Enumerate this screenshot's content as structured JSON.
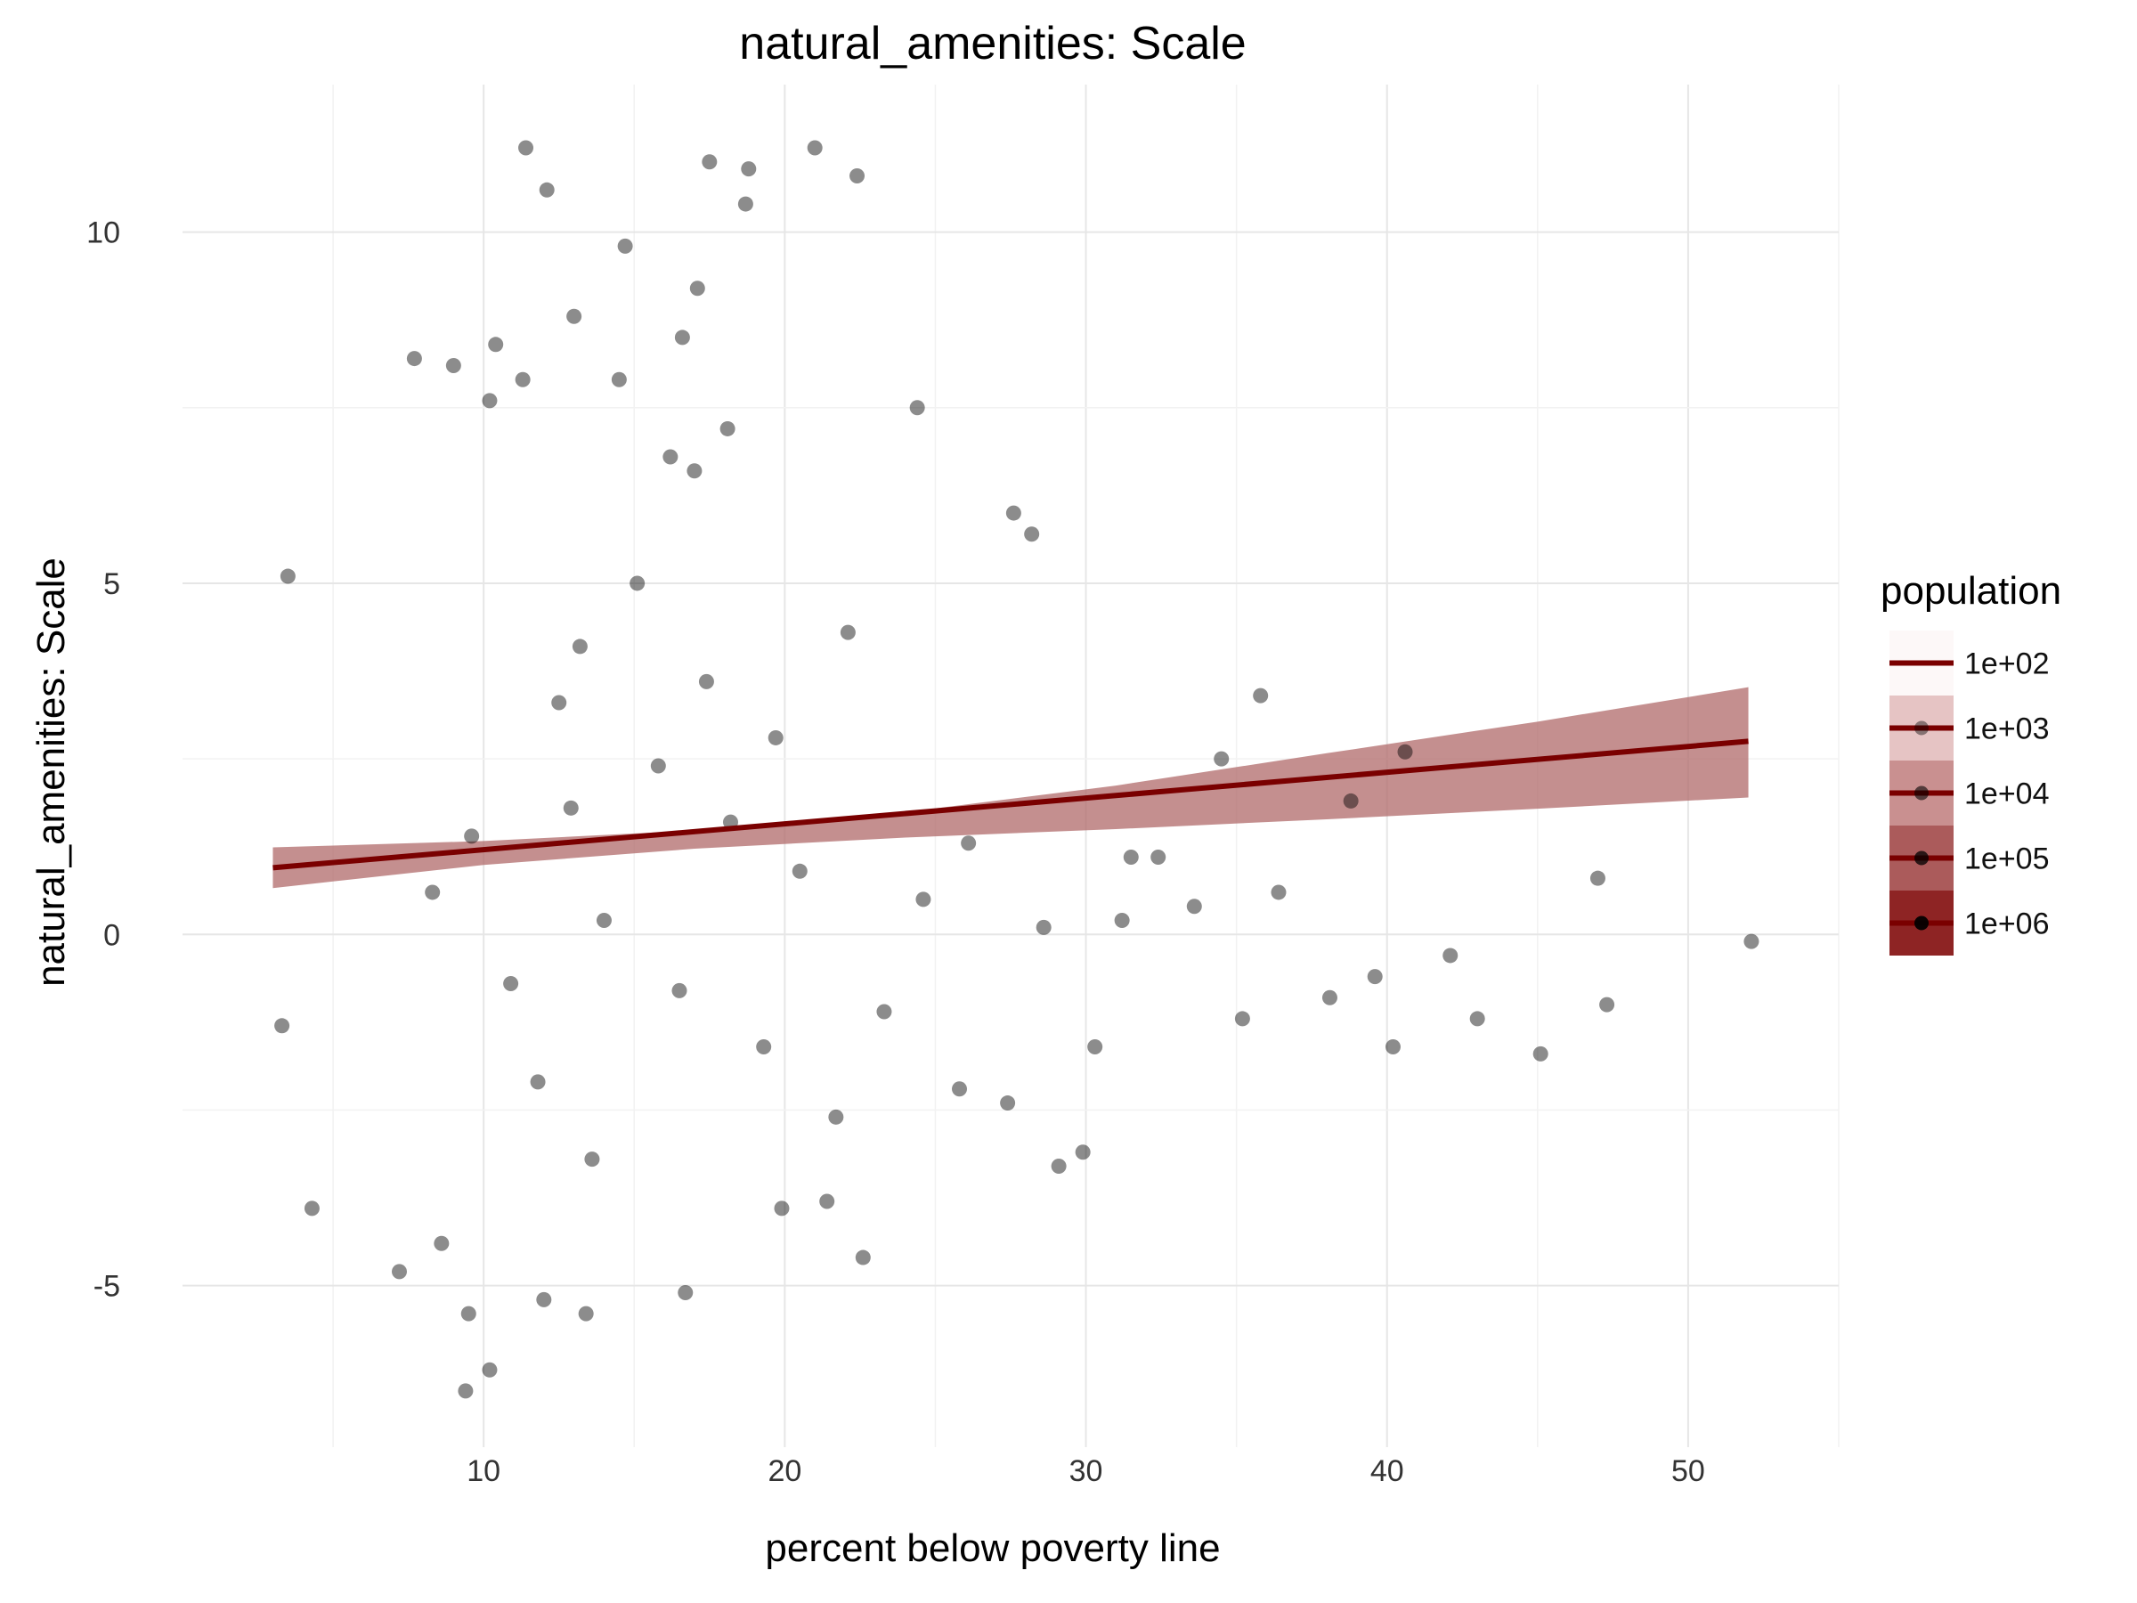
{
  "chart_data": {
    "type": "scatter",
    "title": "natural_amenities: Scale",
    "xlabel": "percent below poverty line",
    "ylabel": "natural_amenities: Scale",
    "xlim": [
      0,
      55
    ],
    "ylim": [
      -7.3,
      12.1
    ],
    "x_ticks": [
      10,
      20,
      30,
      40,
      50
    ],
    "y_ticks": [
      -5,
      0,
      5,
      10
    ],
    "x_tick_labels": [
      "10",
      "20",
      "30",
      "40",
      "50"
    ],
    "y_tick_labels": [
      "-5",
      "0",
      "5",
      "10"
    ],
    "grid": true,
    "point_color": "#000000",
    "fit_color": "#7a0000",
    "ribbon_color": "#b06a6a",
    "fit_line": {
      "x": [
        3,
        52
      ],
      "y": [
        0.95,
        2.75
      ]
    },
    "confidence_band": {
      "x": [
        3,
        10,
        17,
        24,
        31,
        38,
        45,
        52
      ],
      "lower": [
        0.66,
        0.99,
        1.22,
        1.38,
        1.5,
        1.64,
        1.79,
        1.95
      ],
      "upper": [
        1.24,
        1.33,
        1.48,
        1.74,
        2.12,
        2.58,
        3.03,
        3.52
      ]
    },
    "points": [
      [
        11.4,
        11.2
      ],
      [
        12.1,
        10.6
      ],
      [
        18.7,
        10.4
      ],
      [
        21.0,
        11.2
      ],
      [
        22.4,
        10.8
      ],
      [
        17.5,
        11.0
      ],
      [
        18.8,
        10.9
      ],
      [
        14.7,
        9.8
      ],
      [
        13.0,
        8.8
      ],
      [
        17.1,
        9.2
      ],
      [
        16.6,
        8.5
      ],
      [
        10.4,
        8.4
      ],
      [
        7.7,
        8.2
      ],
      [
        9.0,
        8.1
      ],
      [
        11.3,
        7.9
      ],
      [
        14.5,
        7.9
      ],
      [
        10.2,
        7.6
      ],
      [
        24.4,
        7.5
      ],
      [
        18.1,
        7.2
      ],
      [
        16.2,
        6.8
      ],
      [
        17.0,
        6.6
      ],
      [
        27.6,
        6.0
      ],
      [
        28.2,
        5.7
      ],
      [
        3.5,
        5.1
      ],
      [
        35.8,
        3.4
      ],
      [
        34.5,
        2.5
      ],
      [
        40.6,
        2.6
      ],
      [
        38.8,
        1.9
      ],
      [
        31.5,
        1.1
      ],
      [
        32.4,
        1.1
      ],
      [
        47.0,
        0.8
      ],
      [
        52.1,
        -0.1
      ],
      [
        47.3,
        -1.0
      ],
      [
        45.1,
        -1.7
      ],
      [
        43.0,
        -1.2
      ],
      [
        40.2,
        -1.6
      ],
      [
        3.3,
        -1.3
      ],
      [
        4.3,
        -3.9
      ],
      [
        9.4,
        -6.5
      ],
      [
        10.2,
        -6.2
      ],
      [
        22.6,
        -4.6
      ],
      [
        16.7,
        -5.1
      ],
      [
        13.4,
        -5.4
      ],
      [
        9.5,
        -5.4
      ],
      [
        12.0,
        -5.2
      ],
      [
        29.1,
        -3.3
      ],
      [
        29.9,
        -3.1
      ],
      [
        19.9,
        -3.9
      ],
      [
        21.4,
        -3.8
      ],
      [
        8.6,
        -4.4
      ],
      [
        7.2,
        -4.8
      ],
      [
        33.6,
        0.4
      ],
      [
        36.4,
        0.6
      ],
      [
        31.2,
        0.2
      ],
      [
        38.1,
        -0.9
      ],
      [
        39.6,
        -0.6
      ],
      [
        42.1,
        -0.3
      ],
      [
        30.3,
        -1.6
      ],
      [
        25.8,
        -2.2
      ],
      [
        27.4,
        -2.4
      ],
      [
        35.2,
        -1.2
      ],
      [
        12.5,
        3.3
      ],
      [
        15.8,
        2.4
      ],
      [
        18.2,
        1.6
      ],
      [
        20.5,
        0.9
      ],
      [
        14.0,
        0.2
      ],
      [
        16.5,
        -0.8
      ],
      [
        19.3,
        -1.6
      ],
      [
        11.8,
        -2.1
      ],
      [
        13.6,
        -3.2
      ],
      [
        21.7,
        -2.6
      ],
      [
        23.3,
        -1.1
      ],
      [
        24.6,
        0.5
      ],
      [
        9.6,
        1.4
      ],
      [
        8.3,
        0.6
      ],
      [
        10.9,
        -0.7
      ],
      [
        12.9,
        1.8
      ],
      [
        17.4,
        3.6
      ],
      [
        22.1,
        4.3
      ],
      [
        26.1,
        1.3
      ],
      [
        28.6,
        0.1
      ],
      [
        15.1,
        5.0
      ],
      [
        13.2,
        4.1
      ],
      [
        19.7,
        2.8
      ]
    ]
  },
  "legend": {
    "title": "population",
    "entries": [
      "1e+02",
      "1e+03",
      "1e+04",
      "1e+05",
      "1e+06"
    ],
    "swatch_colors": [
      "#fdf8f8",
      "#e6c4c4",
      "#c99090",
      "#ab5b5b",
      "#8e2424"
    ]
  }
}
